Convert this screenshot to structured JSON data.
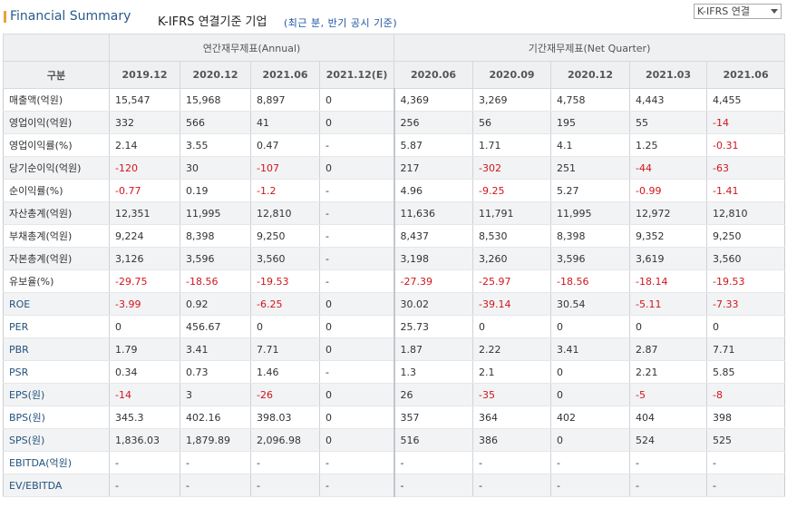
{
  "header": {
    "title": "Financial Summary",
    "basis": "K-IFRS 연결기준 기업",
    "note": "(최근 분, 반기 공시 기준)",
    "select_value": "K-IFRS 연결"
  },
  "table": {
    "row_header_label": "구분",
    "annual_group": "연간재무제표(Annual)",
    "quarter_group": "기간재무제표(Net Quarter)",
    "annual_cols": [
      "2019.12",
      "2020.12",
      "2021.06",
      "2021.12(E)"
    ],
    "quarter_cols": [
      "2020.06",
      "2020.09",
      "2020.12",
      "2021.03",
      "2021.06"
    ],
    "rows": [
      {
        "label": "매출액(억원)",
        "annual": [
          "15,547",
          "15,968",
          "8,897",
          "0"
        ],
        "quarter": [
          "4,369",
          "3,269",
          "4,758",
          "4,443",
          "4,455"
        ]
      },
      {
        "label": "영업이익(억원)",
        "annual": [
          "332",
          "566",
          "41",
          "0"
        ],
        "quarter": [
          "256",
          "56",
          "195",
          "55",
          "-14"
        ]
      },
      {
        "label": "영업이익률(%)",
        "annual": [
          "2.14",
          "3.55",
          "0.47",
          "-"
        ],
        "quarter": [
          "5.87",
          "1.71",
          "4.1",
          "1.25",
          "-0.31"
        ]
      },
      {
        "label": "당기순이익(억원)",
        "annual": [
          "-120",
          "30",
          "-107",
          "0"
        ],
        "quarter": [
          "217",
          "-302",
          "251",
          "-44",
          "-63"
        ]
      },
      {
        "label": "순이익률(%)",
        "annual": [
          "-0.77",
          "0.19",
          "-1.2",
          "-"
        ],
        "quarter": [
          "4.96",
          "-9.25",
          "5.27",
          "-0.99",
          "-1.41"
        ]
      },
      {
        "label": "자산총계(억원)",
        "annual": [
          "12,351",
          "11,995",
          "12,810",
          "-"
        ],
        "quarter": [
          "11,636",
          "11,791",
          "11,995",
          "12,972",
          "12,810"
        ]
      },
      {
        "label": "부채총계(억원)",
        "annual": [
          "9,224",
          "8,398",
          "9,250",
          "-"
        ],
        "quarter": [
          "8,437",
          "8,530",
          "8,398",
          "9,352",
          "9,250"
        ]
      },
      {
        "label": "자본총계(억원)",
        "annual": [
          "3,126",
          "3,596",
          "3,560",
          "-"
        ],
        "quarter": [
          "3,198",
          "3,260",
          "3,596",
          "3,619",
          "3,560"
        ]
      },
      {
        "label": "유보율(%)",
        "annual": [
          "-29.75",
          "-18.56",
          "-19.53",
          "-"
        ],
        "quarter": [
          "-27.39",
          "-25.97",
          "-18.56",
          "-18.14",
          "-19.53"
        ]
      },
      {
        "label": "ROE",
        "annual": [
          "-3.99",
          "0.92",
          "-6.25",
          "0"
        ],
        "quarter": [
          "30.02",
          "-39.14",
          "30.54",
          "-5.11",
          "-7.33"
        ]
      },
      {
        "label": "PER",
        "annual": [
          "0",
          "456.67",
          "0",
          "0"
        ],
        "quarter": [
          "25.73",
          "0",
          "0",
          "0",
          "0"
        ]
      },
      {
        "label": "PBR",
        "annual": [
          "1.79",
          "3.41",
          "7.71",
          "0"
        ],
        "quarter": [
          "1.87",
          "2.22",
          "3.41",
          "2.87",
          "7.71"
        ]
      },
      {
        "label": "PSR",
        "annual": [
          "0.34",
          "0.73",
          "1.46",
          "-"
        ],
        "quarter": [
          "1.3",
          "2.1",
          "0",
          "2.21",
          "5.85"
        ]
      },
      {
        "label": "EPS(원)",
        "annual": [
          "-14",
          "3",
          "-26",
          "0"
        ],
        "quarter": [
          "26",
          "-35",
          "0",
          "-5",
          "-8"
        ]
      },
      {
        "label": "BPS(원)",
        "annual": [
          "345.3",
          "402.16",
          "398.03",
          "0"
        ],
        "quarter": [
          "357",
          "364",
          "402",
          "404",
          "398"
        ]
      },
      {
        "label": "SPS(원)",
        "annual": [
          "1,836.03",
          "1,879.89",
          "2,096.98",
          "0"
        ],
        "quarter": [
          "516",
          "386",
          "0",
          "524",
          "525"
        ]
      },
      {
        "label": "EBITDA(억원)",
        "annual": [
          "-",
          "-",
          "-",
          "-"
        ],
        "quarter": [
          "-",
          "-",
          "-",
          "-",
          "-"
        ]
      },
      {
        "label": "EV/EBITDA",
        "annual": [
          "-",
          "-",
          "-",
          "-"
        ],
        "quarter": [
          "-",
          "-",
          "-",
          "-",
          "-"
        ]
      }
    ],
    "blue_labels": [
      "ROE",
      "PER",
      "PBR",
      "PSR",
      "EPS(원)",
      "BPS(원)",
      "SPS(원)",
      "EBITDA(억원)",
      "EV/EBITDA"
    ]
  },
  "colors": {
    "negative": "#d0161b",
    "title": "#2a5a8a",
    "note": "#1f55a6",
    "accent": "#e8a23c",
    "label_blue": "#23527c"
  }
}
